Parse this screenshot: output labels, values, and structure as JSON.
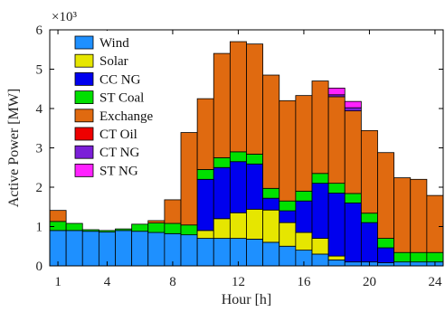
{
  "chart_data": {
    "type": "bar",
    "stacked": true,
    "x": [
      1,
      2,
      3,
      4,
      5,
      6,
      7,
      8,
      9,
      10,
      11,
      12,
      13,
      14,
      15,
      16,
      17,
      18,
      19,
      20,
      21,
      22,
      23,
      24
    ],
    "xticks": [
      1,
      4,
      8,
      12,
      16,
      20,
      24
    ],
    "xlim": [
      0.5,
      24.5
    ],
    "ylim": [
      0,
      6000
    ],
    "yticks": [
      0,
      1000,
      2000,
      3000,
      4000,
      5000,
      6000
    ],
    "ytick_labels": [
      "0",
      "1",
      "2",
      "3",
      "4",
      "5",
      "6"
    ],
    "y_multiplier_label": "×10³",
    "xlabel": "Hour [h]",
    "ylabel": "Active Power [MW]",
    "grid": false,
    "legend_position": "top-left",
    "series": [
      {
        "name": "Wind",
        "color": "#1e90ff",
        "values": [
          900,
          900,
          880,
          860,
          900,
          880,
          850,
          820,
          790,
          700,
          700,
          700,
          680,
          600,
          500,
          400,
          300,
          150,
          100,
          100,
          80,
          100,
          100,
          100
        ]
      },
      {
        "name": "Solar",
        "color": "#e6e600",
        "values": [
          0,
          0,
          0,
          0,
          0,
          0,
          0,
          0,
          0,
          200,
          500,
          650,
          760,
          820,
          600,
          450,
          400,
          100,
          0,
          0,
          0,
          0,
          0,
          0
        ]
      },
      {
        "name": "CC NG",
        "color": "#0000ee",
        "values": [
          0,
          0,
          0,
          0,
          0,
          0,
          0,
          0,
          0,
          1300,
          1300,
          1300,
          1150,
          300,
          300,
          800,
          1400,
          1600,
          1500,
          1000,
          380,
          0,
          0,
          0
        ]
      },
      {
        "name": "ST Coal",
        "color": "#00e000",
        "values": [
          230,
          180,
          40,
          40,
          40,
          180,
          240,
          260,
          250,
          250,
          250,
          250,
          250,
          250,
          250,
          250,
          250,
          250,
          240,
          240,
          240,
          240,
          240,
          240
        ]
      },
      {
        "name": "Exchange",
        "color": "#e06a10",
        "values": [
          280,
          0,
          0,
          0,
          0,
          0,
          60,
          600,
          2350,
          1800,
          2650,
          2800,
          2800,
          2880,
          2550,
          2430,
          2350,
          2200,
          2100,
          2100,
          2180,
          1900,
          1860,
          1450
        ]
      },
      {
        "name": "CT Oil",
        "color": "#ee0000",
        "values": [
          0,
          0,
          0,
          0,
          0,
          0,
          0,
          0,
          0,
          0,
          0,
          0,
          0,
          0,
          0,
          0,
          0,
          0,
          0,
          0,
          0,
          0,
          0,
          0
        ]
      },
      {
        "name": "CT NG",
        "color": "#7b1fd8",
        "values": [
          0,
          0,
          0,
          0,
          0,
          0,
          0,
          0,
          0,
          0,
          0,
          0,
          0,
          0,
          0,
          0,
          0,
          50,
          80,
          0,
          0,
          0,
          0,
          0
        ]
      },
      {
        "name": "ST NG",
        "color": "#ff22ff",
        "values": [
          0,
          0,
          0,
          0,
          0,
          0,
          0,
          0,
          0,
          0,
          0,
          0,
          0,
          0,
          0,
          0,
          0,
          170,
          160,
          0,
          0,
          0,
          0,
          0
        ]
      }
    ]
  }
}
